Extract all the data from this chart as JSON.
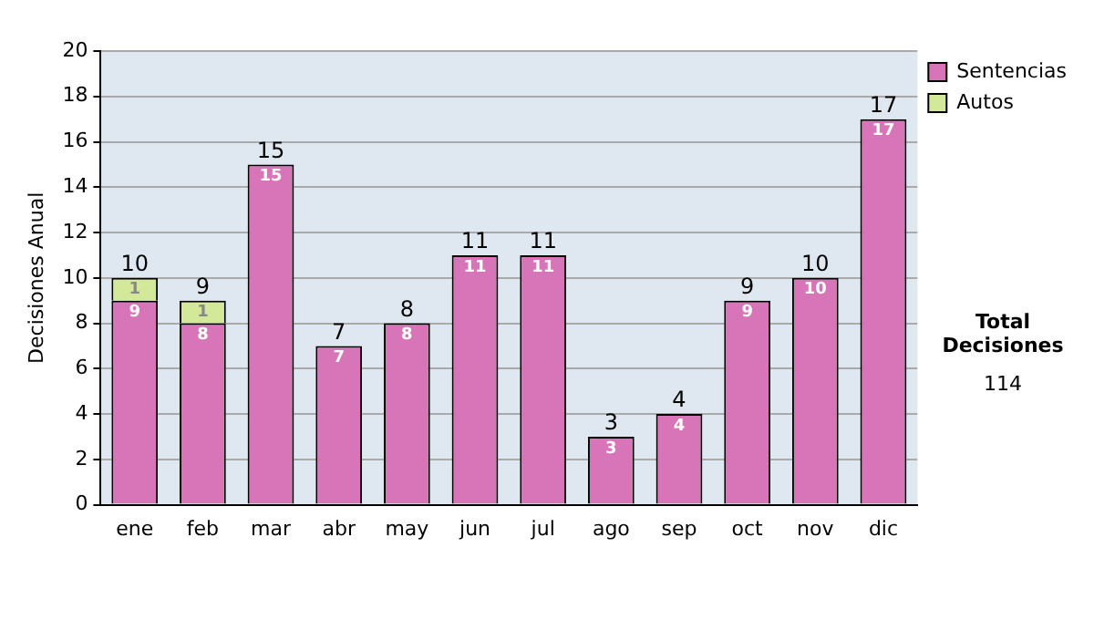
{
  "chart_data": {
    "type": "bar",
    "ylabel": "Decisiones Anual",
    "categories": [
      "ene",
      "feb",
      "mar",
      "abr",
      "may",
      "jun",
      "jul",
      "ago",
      "sep",
      "oct",
      "nov",
      "dic"
    ],
    "series": [
      {
        "name": "Sentencias",
        "color": "#d874b8",
        "values": [
          9,
          8,
          15,
          7,
          8,
          11,
          11,
          3,
          4,
          9,
          10,
          17
        ]
      },
      {
        "name": "Autos",
        "color": "#d4e89a",
        "values": [
          1,
          1,
          null,
          null,
          null,
          null,
          null,
          null,
          null,
          null,
          null,
          null
        ]
      }
    ],
    "stacked": true,
    "ylim": [
      0,
      20
    ],
    "yticks": [
      0,
      2,
      4,
      6,
      8,
      10,
      12,
      14,
      16,
      18,
      20
    ],
    "grid": "y",
    "legend": "right",
    "data_labels": true,
    "totals": [
      "10",
      "9",
      "15",
      "7",
      "8",
      "11",
      "11",
      "3",
      "4",
      "9",
      "10",
      "17"
    ],
    "annotations": [
      "Total Decisiones",
      "114"
    ]
  }
}
